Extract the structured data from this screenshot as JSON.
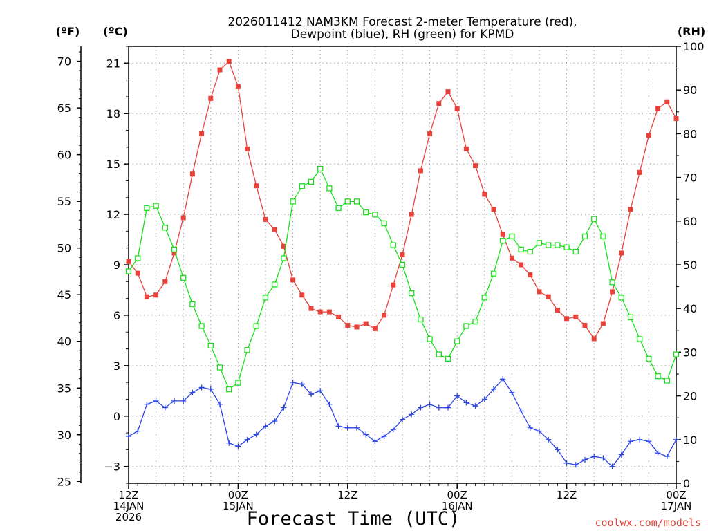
{
  "chart_data": {
    "type": "line",
    "title_lines": [
      "2026011412 NAM3KM Forecast 2-meter Temperature (red),",
      "Dewpoint (blue), RH (green) for KPMD"
    ],
    "xlabel": "Forecast Time (UTC)",
    "credit": "coolwx.com/models",
    "x_forecast_hours": [
      0,
      1,
      2,
      3,
      4,
      5,
      6,
      7,
      8,
      9,
      10,
      11,
      12,
      13,
      14,
      15,
      16,
      17,
      18,
      19,
      20,
      21,
      22,
      23,
      24,
      25,
      26,
      27,
      28,
      29,
      30,
      31,
      32,
      33,
      34,
      35,
      36,
      37,
      38,
      39,
      40,
      41,
      42,
      43,
      44,
      45,
      46,
      47,
      48,
      49,
      50,
      51,
      52,
      53,
      54,
      55,
      56,
      57,
      58,
      59,
      60
    ],
    "x_range": [
      0,
      60
    ],
    "x_ticks": [
      {
        "hour": 0,
        "lines": [
          "12Z",
          "14JAN",
          "2026"
        ]
      },
      {
        "hour": 12,
        "lines": [
          "00Z",
          "15JAN"
        ]
      },
      {
        "hour": 24,
        "lines": [
          "12Z"
        ]
      },
      {
        "hour": 36,
        "lines": [
          "00Z",
          "16JAN"
        ]
      },
      {
        "hour": 48,
        "lines": [
          "12Z"
        ]
      },
      {
        "hour": 60,
        "lines": [
          "00Z",
          "17JAN"
        ]
      }
    ],
    "axes": {
      "celsius": {
        "unit_label": "(ºC)",
        "range": [
          -4,
          22
        ],
        "ticks": [
          -3,
          0,
          3,
          6,
          9,
          12,
          15,
          18,
          21
        ],
        "tick_labels": [
          "−3",
          "0",
          "3",
          "6",
          "9",
          "12",
          "15",
          "18",
          "21"
        ]
      },
      "fahrenheit": {
        "unit_label": "(ºF)",
        "ticks": [
          25,
          30,
          35,
          40,
          45,
          50,
          55,
          60,
          65,
          70
        ],
        "tick_labels": [
          "25",
          "30",
          "35",
          "40",
          "45",
          "50",
          "55",
          "60",
          "65",
          "70"
        ]
      },
      "rh": {
        "unit_label": "(RH)",
        "range": [
          0,
          100
        ],
        "ticks": [
          0,
          10,
          20,
          30,
          40,
          50,
          60,
          70,
          80,
          90,
          100
        ],
        "tick_labels": [
          "0",
          "10",
          "20",
          "30",
          "40",
          "50",
          "60",
          "70",
          "80",
          "90",
          "100"
        ]
      }
    },
    "grid": true,
    "series": [
      {
        "name": "2-meter Temperature",
        "unit": "°C",
        "axis": "celsius",
        "color": "#e8413a",
        "marker": "filled-square",
        "values": [
          9.2,
          8.5,
          7.1,
          7.2,
          8.0,
          9.7,
          11.8,
          14.4,
          16.8,
          18.9,
          20.6,
          21.1,
          19.6,
          15.9,
          13.7,
          11.7,
          11.1,
          10.1,
          8.1,
          7.2,
          6.4,
          6.2,
          6.2,
          5.9,
          5.4,
          5.3,
          5.5,
          5.2,
          6.0,
          7.8,
          9.6,
          12.0,
          14.6,
          16.8,
          18.6,
          19.3,
          18.3,
          15.9,
          14.9,
          13.2,
          12.3,
          10.8,
          9.4,
          9.0,
          8.4,
          7.4,
          7.1,
          6.3,
          5.8,
          5.9,
          5.4,
          4.6,
          5.5,
          7.4,
          9.7,
          12.3,
          14.5,
          16.7,
          18.3,
          18.7,
          17.7
        ]
      },
      {
        "name": "Dewpoint",
        "unit": "°C",
        "axis": "celsius",
        "color": "#2a44e8",
        "marker": "plus",
        "values": [
          -1.2,
          -0.9,
          0.7,
          0.9,
          0.5,
          0.9,
          0.9,
          1.4,
          1.7,
          1.6,
          0.7,
          -1.6,
          -1.8,
          -1.4,
          -1.1,
          -0.6,
          -0.3,
          0.5,
          2.0,
          1.9,
          1.3,
          1.5,
          0.7,
          -0.6,
          -0.7,
          -0.7,
          -1.1,
          -1.5,
          -1.2,
          -0.8,
          -0.2,
          0.1,
          0.5,
          0.7,
          0.5,
          0.5,
          1.2,
          0.8,
          0.6,
          1.0,
          1.6,
          2.2,
          1.4,
          0.3,
          -0.7,
          -0.9,
          -1.4,
          -2.0,
          -2.8,
          -2.9,
          -2.6,
          -2.4,
          -2.5,
          -3.0,
          -2.3,
          -1.5,
          -1.4,
          -1.5,
          -2.2,
          -2.4,
          -1.4
        ]
      },
      {
        "name": "RH",
        "unit": "%",
        "axis": "rh",
        "color": "#18e018",
        "marker": "open-square",
        "values": [
          48.5,
          51.5,
          63.0,
          63.5,
          58.5,
          53.5,
          47.0,
          41.0,
          36.0,
          31.5,
          26.5,
          21.5,
          23.0,
          30.5,
          36.0,
          42.5,
          45.5,
          51.5,
          64.5,
          68.0,
          69.0,
          72.0,
          67.5,
          63.0,
          64.5,
          64.5,
          62.0,
          61.5,
          59.5,
          54.5,
          50.0,
          43.5,
          37.5,
          33.0,
          29.5,
          28.5,
          32.5,
          36.0,
          37.0,
          42.5,
          48.0,
          55.5,
          56.5,
          53.5,
          53.0,
          55.0,
          54.5,
          54.5,
          54.0,
          53.0,
          56.5,
          60.5,
          56.5,
          46.0,
          42.5,
          38.0,
          33.0,
          28.5,
          24.5,
          23.5,
          29.5
        ]
      }
    ]
  }
}
